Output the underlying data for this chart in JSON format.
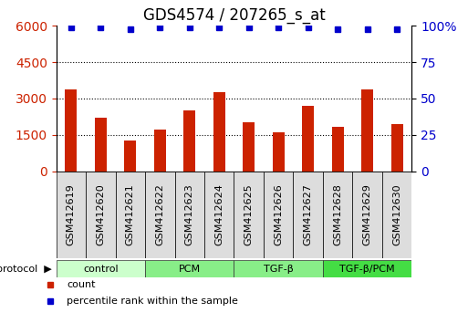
{
  "title": "GDS4574 / 207265_s_at",
  "samples": [
    "GSM412619",
    "GSM412620",
    "GSM412621",
    "GSM412622",
    "GSM412623",
    "GSM412624",
    "GSM412625",
    "GSM412626",
    "GSM412627",
    "GSM412628",
    "GSM412629",
    "GSM412630"
  ],
  "counts": [
    3380,
    2200,
    1260,
    1720,
    2520,
    3280,
    2020,
    1600,
    2700,
    1820,
    3380,
    1960
  ],
  "percentile_ranks": [
    99,
    99,
    98,
    99,
    99,
    99,
    99,
    99,
    99,
    98,
    98,
    98
  ],
  "bar_color": "#cc2200",
  "marker_color": "#0000cc",
  "ylim_left": [
    0,
    6000
  ],
  "ylim_right": [
    0,
    100
  ],
  "yticks_left": [
    0,
    1500,
    3000,
    4500,
    6000
  ],
  "yticks_right": [
    0,
    25,
    50,
    75,
    100
  ],
  "grid_values": [
    1500,
    3000,
    4500
  ],
  "protocols": [
    {
      "label": "control",
      "start": 0,
      "end": 3,
      "color": "#ccffcc"
    },
    {
      "label": "PCM",
      "start": 3,
      "end": 6,
      "color": "#88ee88"
    },
    {
      "label": "TGF-β",
      "start": 6,
      "end": 9,
      "color": "#88ee88"
    },
    {
      "label": "TGF-β/PCM",
      "start": 9,
      "end": 12,
      "color": "#44dd44"
    }
  ],
  "legend_count_label": "count",
  "legend_percentile_label": "percentile rank within the sample",
  "protocol_label": "protocol",
  "bar_color_left": "#cc2200",
  "tick_color_right": "#0000cc",
  "title_fontsize": 12,
  "tick_label_fontsize": 8,
  "bar_width": 0.4
}
